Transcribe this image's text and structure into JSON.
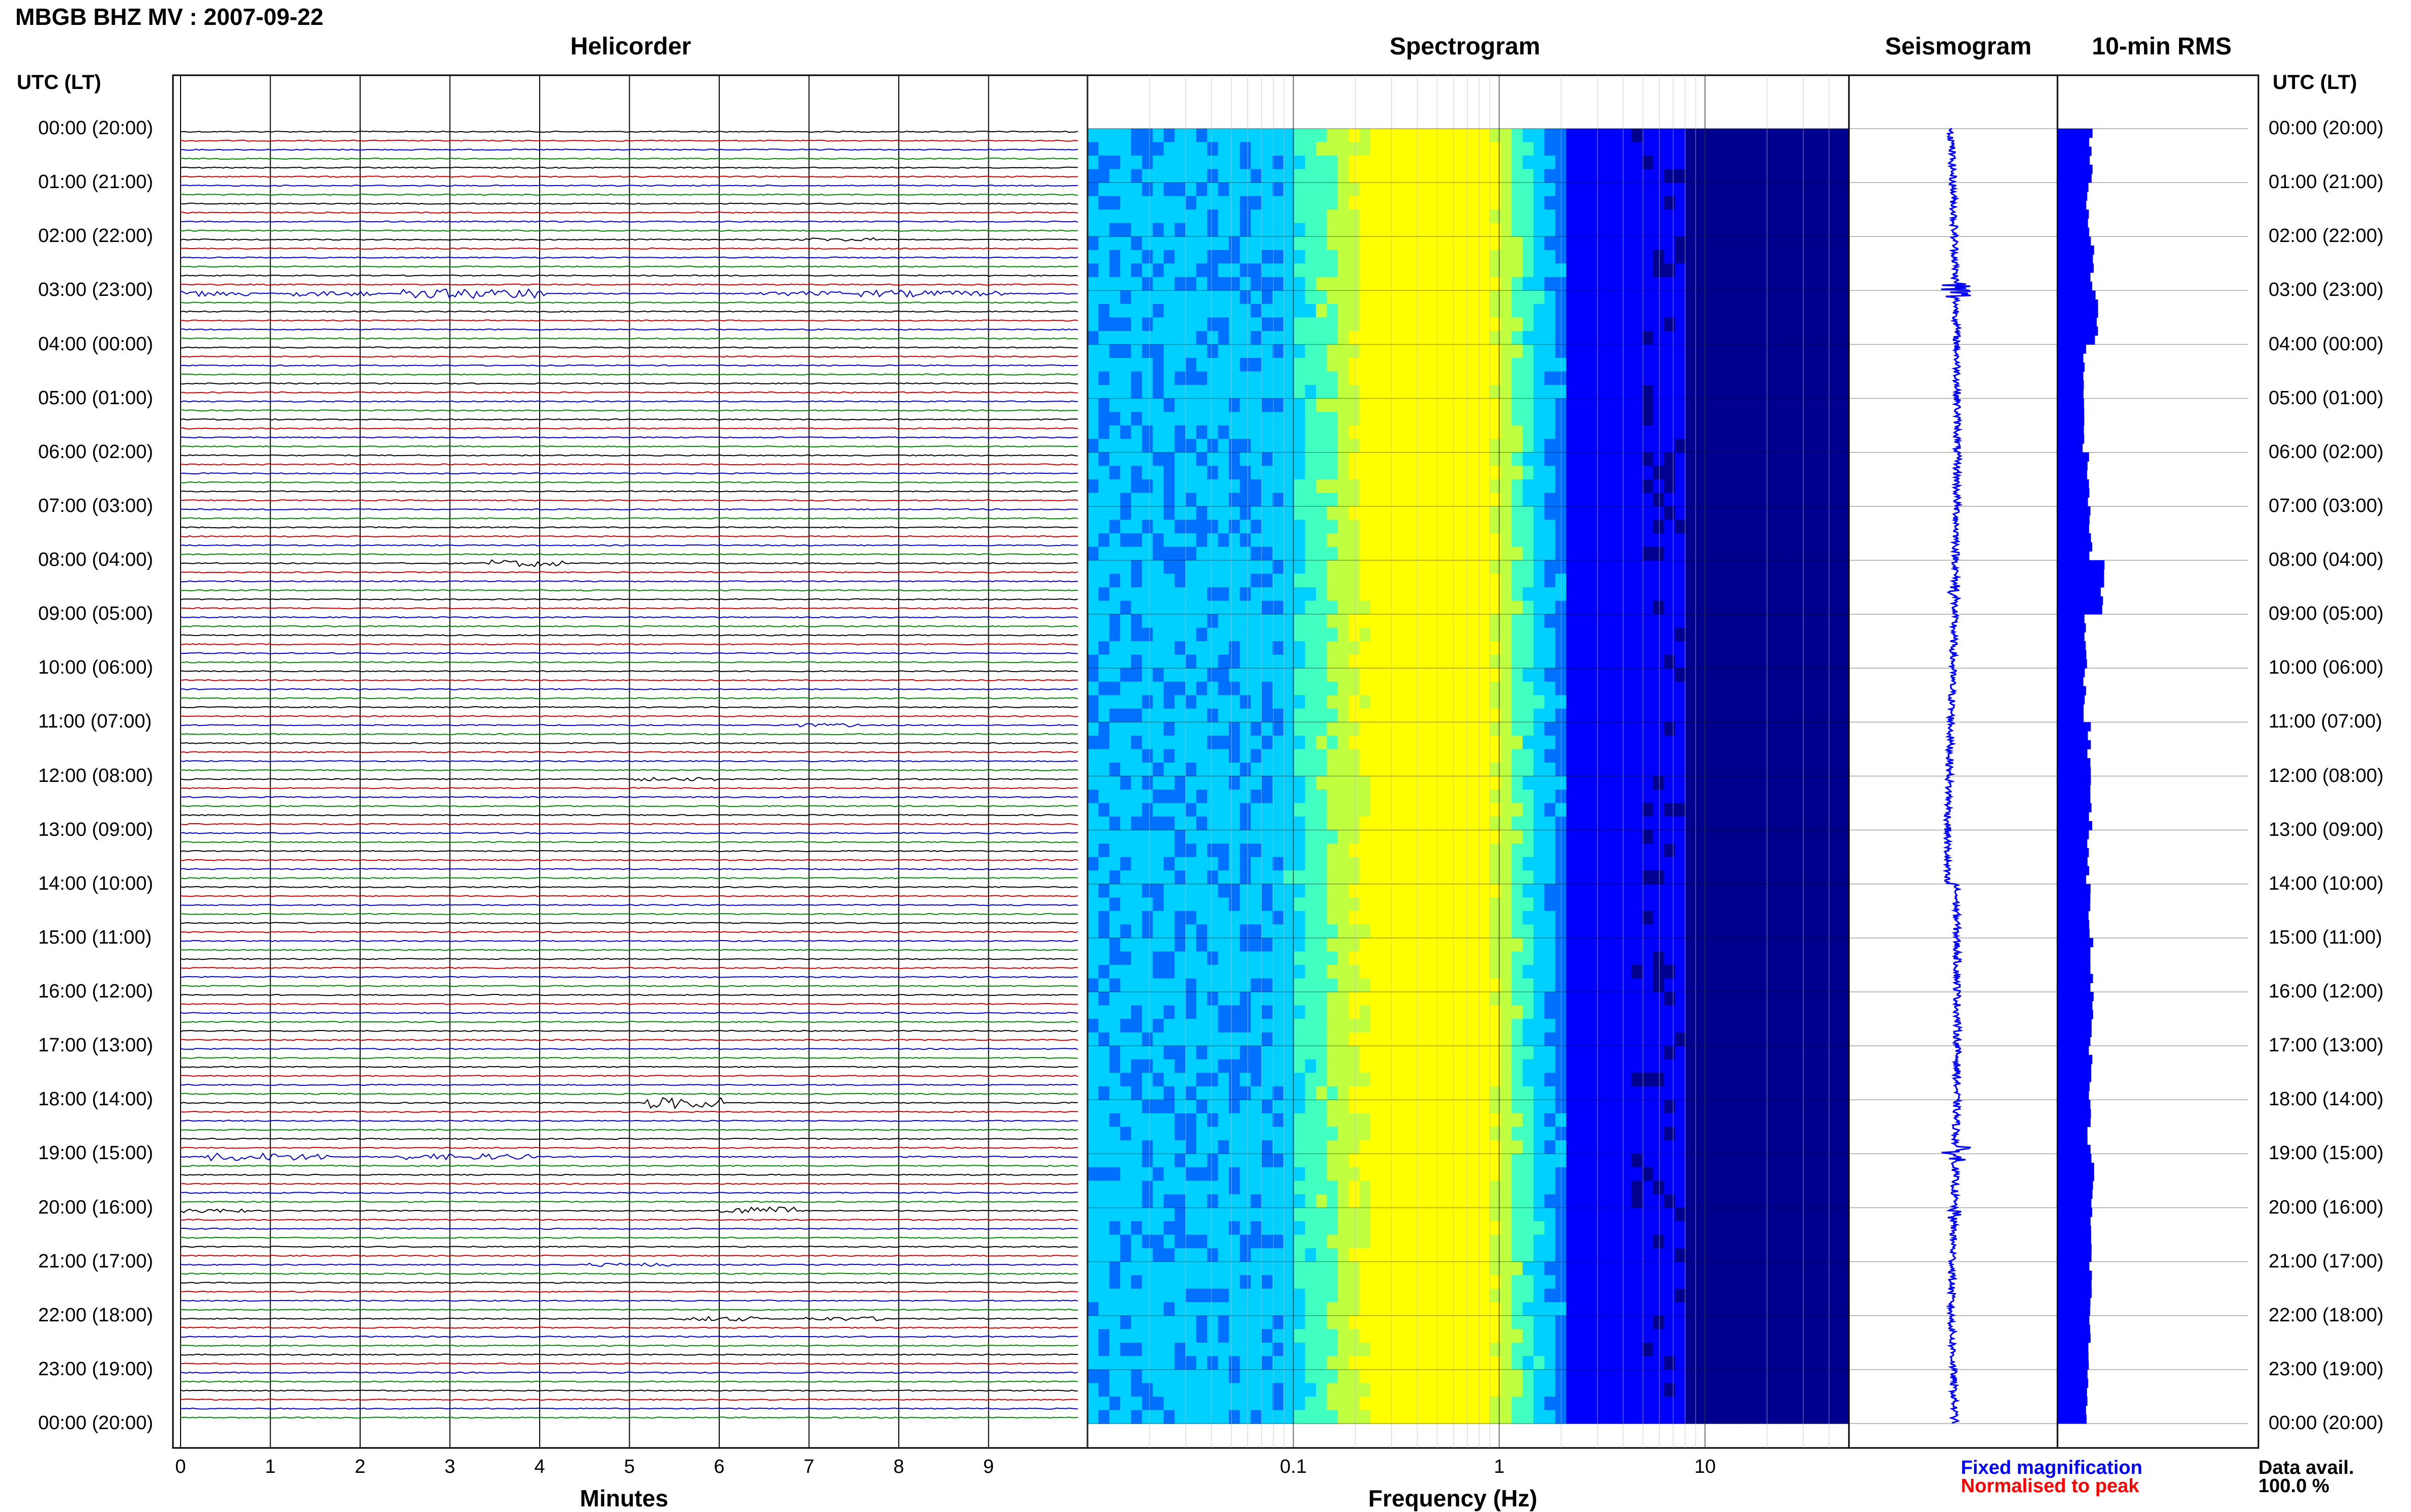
{
  "title": "MBGB BHZ MV : 2007-09-22",
  "panels": {
    "helicorder": "Helicorder",
    "spectrogram": "Spectrogram",
    "seismogram": "Seismogram",
    "rms": "10-min RMS"
  },
  "utc_header": "UTC (LT)",
  "time_labels": [
    "00:00 (20:00)",
    "01:00 (21:00)",
    "02:00 (22:00)",
    "03:00 (23:00)",
    "04:00 (00:00)",
    "05:00 (01:00)",
    "06:00 (02:00)",
    "07:00 (03:00)",
    "08:00 (04:00)",
    "09:00 (05:00)",
    "10:00 (06:00)",
    "11:00 (07:00)",
    "12:00 (08:00)",
    "13:00 (09:00)",
    "14:00 (10:00)",
    "15:00 (11:00)",
    "16:00 (12:00)",
    "17:00 (13:00)",
    "18:00 (14:00)",
    "19:00 (15:00)",
    "20:00 (16:00)",
    "21:00 (17:00)",
    "22:00 (18:00)",
    "23:00 (19:00)",
    "00:00 (20:00)"
  ],
  "legend": {
    "fixed": "Fixed magnification",
    "normalised": "Normalised to peak",
    "fixed_color": "#0000ff",
    "normalised_color": "#ff0000"
  },
  "availability": {
    "label": "Data avail.",
    "value": "100.0 %"
  },
  "chart_data": [
    {
      "type": "line",
      "name": "helicorder",
      "xlabel": "Minutes",
      "xticks": [
        "0",
        "1",
        "2",
        "3",
        "4",
        "5",
        "6",
        "7",
        "8",
        "9"
      ],
      "xlim": [
        0,
        10
      ],
      "trace_colors": [
        "#000000",
        "#cc0000",
        "#0000cc",
        "#008800"
      ],
      "events": [
        {
          "hour": 2,
          "minute": 7.3,
          "amplitude": 0.3,
          "color": "#0000cc"
        },
        {
          "hour": 3,
          "minute": 0.3,
          "amplitude": 0.5,
          "color": "#0000cc"
        },
        {
          "hour": 3,
          "minute": 1.7,
          "amplitude": 0.45,
          "color": "#0000cc"
        },
        {
          "hour": 3,
          "minute": 2.9,
          "amplitude": 0.8,
          "color": "#0000cc"
        },
        {
          "hour": 3,
          "minute": 3.6,
          "amplitude": 0.9,
          "color": "#0000cc"
        },
        {
          "hour": 3,
          "minute": 6.9,
          "amplitude": 0.4,
          "color": "#cc0000"
        },
        {
          "hour": 3,
          "minute": 8.0,
          "amplitude": 0.6,
          "color": "#cc0000"
        },
        {
          "hour": 3,
          "minute": 8.7,
          "amplitude": 0.45,
          "color": "#cc0000"
        },
        {
          "hour": 8,
          "minute": 3.8,
          "amplitude": 0.6,
          "color": "#000000"
        },
        {
          "hour": 11,
          "minute": 7.1,
          "amplitude": 0.3,
          "color": "#008800"
        },
        {
          "hour": 12,
          "minute": 5.5,
          "amplitude": 0.3,
          "color": "#000000"
        },
        {
          "hour": 19,
          "minute": 0.7,
          "amplitude": 0.7,
          "color": "#008800"
        },
        {
          "hour": 19,
          "minute": 1.2,
          "amplitude": 0.6,
          "color": "#008800"
        },
        {
          "hour": 19,
          "minute": 2.8,
          "amplitude": 0.5,
          "color": "#008800"
        },
        {
          "hour": 19,
          "minute": 3.5,
          "amplitude": 0.5,
          "color": "#008800"
        },
        {
          "hour": 18,
          "minute": 5.6,
          "amplitude": 1.0,
          "color": "#0000cc"
        },
        {
          "hour": 20,
          "minute": 6.4,
          "amplitude": 0.7,
          "color": "#0000cc"
        },
        {
          "hour": 20,
          "minute": 0.3,
          "amplitude": 0.35,
          "color": "#0000cc"
        },
        {
          "hour": 21,
          "minute": 5.0,
          "amplitude": 0.3,
          "color": "#0000cc"
        },
        {
          "hour": 22,
          "minute": 6.0,
          "amplitude": 0.4,
          "color": "#008800"
        },
        {
          "hour": 22,
          "minute": 7.4,
          "amplitude": 0.35,
          "color": "#008800"
        }
      ]
    },
    {
      "type": "heatmap",
      "name": "spectrogram",
      "xlabel": "Frequency (Hz)",
      "xscale": "log",
      "xlim": [
        0.01,
        50
      ],
      "xticks": [
        "0.1",
        "1",
        "10"
      ],
      "peak_frequency_hz": 0.5,
      "colormap": [
        "#00008f",
        "#0000ff",
        "#0070ff",
        "#00d0ff",
        "#40ffc0",
        "#c0ff40",
        "#ffff00"
      ]
    },
    {
      "type": "line",
      "name": "seismogram",
      "hours": 24,
      "spikes": [
        {
          "hour": 3.0,
          "amplitude": 6
        },
        {
          "hour": 19.0,
          "amplitude": 4
        },
        {
          "hour": 8.6,
          "amplitude": 2
        },
        {
          "hour": 20.1,
          "amplitude": 2
        }
      ],
      "color": "#0000ff"
    },
    {
      "type": "bar",
      "name": "10-min RMS",
      "color": "#0000ff",
      "values_per_hour": [
        1.05,
        0.95,
        1.1,
        1.25,
        0.85,
        0.8,
        0.95,
        1.05,
        1.45,
        0.9,
        0.85,
        1.0,
        1.05,
        0.95,
        1.0,
        1.1,
        1.1,
        1.05,
        1.0,
        1.1,
        1.05,
        1.05,
        1.0,
        0.95
      ]
    }
  ]
}
